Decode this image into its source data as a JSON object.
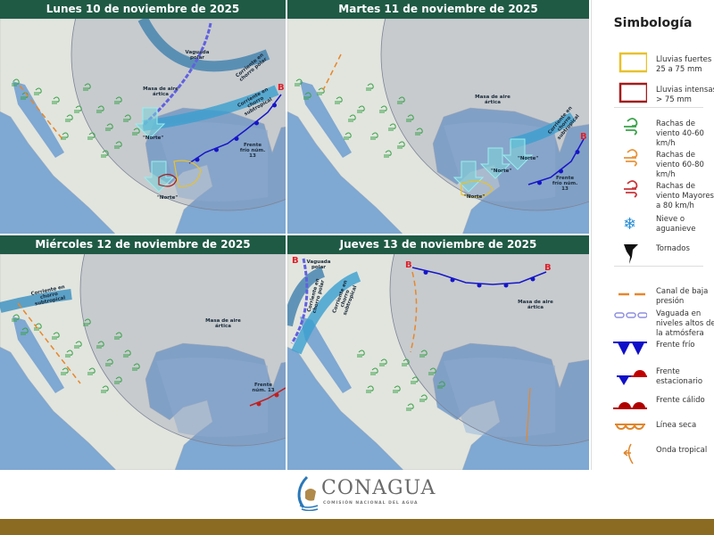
{
  "panels": [
    {
      "title": "Lunes 10 de noviembre de 2025",
      "labels": [
        "Vaguada polar",
        "Masa de aire ártica",
        "Corriente en chorro polar",
        "Corriente en chorro subtropical",
        "Frente frío núm. 13"
      ],
      "norte": [
        "\"Norte\"",
        "\"Norte\""
      ]
    },
    {
      "title": "Martes 11 de noviembre de 2025",
      "labels": [
        "Masa de aire ártica",
        "Corriente en chorro subtropical",
        "Frente frío núm. 13"
      ],
      "norte": [
        "\"Norte\"",
        "\"Norte\"",
        "\"Norte\""
      ]
    },
    {
      "title": "Miércoles 12 de noviembre de 2025",
      "labels": [
        "Corriente en chorro subtropical",
        "Masa de aire ártica",
        "Frente núm. 13"
      ],
      "norte": []
    },
    {
      "title": "Jueves 13 de noviembre de 2025",
      "labels": [
        "Vaguada polar",
        "Corriente en chorro polar",
        "Corriente en chorro subtropical",
        "Masa de aire ártica"
      ],
      "norte": [],
      "low_marker": "B"
    }
  ],
  "legend": {
    "title": "Simbología",
    "items": [
      {
        "icon": "heavy-rain-box",
        "label": "Lluvias fuertes 25 a 75 mm",
        "color": "#e8c12c"
      },
      {
        "icon": "intense-rain-box",
        "label": "Lluvias intensas > 75 mm",
        "color": "#a31d1d"
      },
      {
        "icon": "wind-gust",
        "label": "Rachas de viento 40-60 km/h",
        "color": "#3aa24a"
      },
      {
        "icon": "wind-gust",
        "label": "Rachas de viento 60-80 km/h",
        "color": "#e8943a"
      },
      {
        "icon": "wind-gust",
        "label": "Rachas de viento Mayores a 80 km/h",
        "color": "#c8353a"
      },
      {
        "icon": "snowflake",
        "label": "Nieve o aguanieve",
        "color": "#2a8fd6"
      },
      {
        "icon": "tornado",
        "label": "Tornados",
        "color": "#111111"
      },
      {
        "icon": "low-pressure-trough",
        "label": "Canal de baja presión",
        "color": "#e8872a"
      },
      {
        "icon": "upper-trough",
        "label": "Vaguada en niveles altos de la atmósfera",
        "color": "#8f8fe0"
      },
      {
        "icon": "cold-front",
        "label": "Frente frío",
        "color": "#1010c8"
      },
      {
        "icon": "stationary-front",
        "label": "Frente estacionario",
        "color": "#c00000"
      },
      {
        "icon": "warm-front",
        "label": "Frente cálido",
        "color": "#b00000"
      },
      {
        "icon": "dry-line",
        "label": "Línea seca",
        "color": "#e0852a"
      },
      {
        "icon": "tropical-wave",
        "label": "Onda tropical",
        "color": "#e0852a"
      }
    ]
  },
  "footer": {
    "brand": "CONAGUA",
    "subtitle": "COMISIÓN NACIONAL DEL AGUA"
  }
}
